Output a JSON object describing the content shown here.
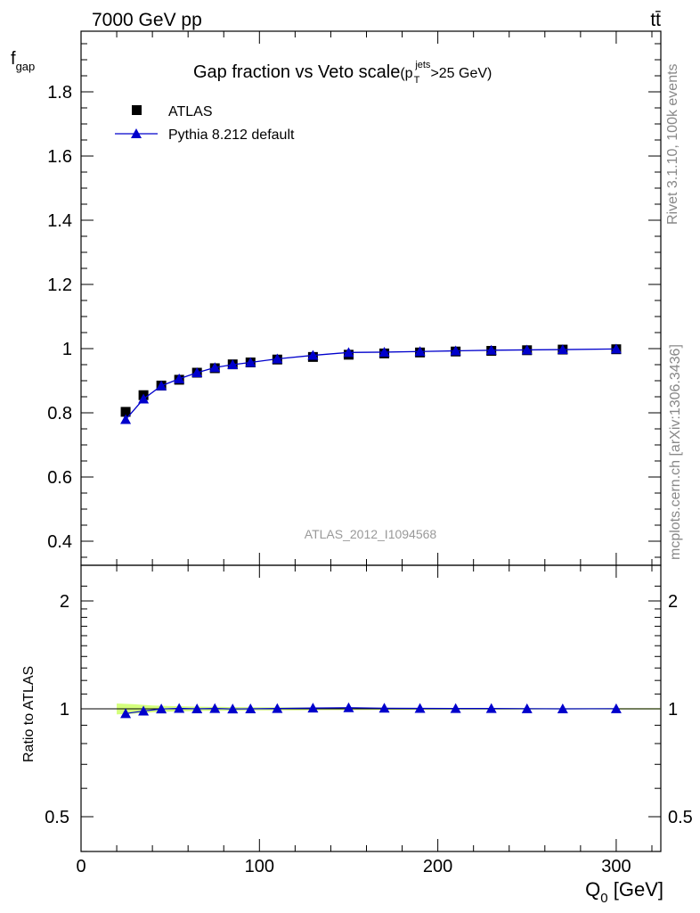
{
  "header": {
    "energy_label": "7000 GeV pp",
    "process_label": "tt̄"
  },
  "side_labels": {
    "rivet": "Rivet 3.1.10,  100k events",
    "source": "mcplots.cern.ch [arXiv:1306.3436]"
  },
  "watermark": "ATLAS_2012_I1094568",
  "chart_data": [
    {
      "type": "scatter",
      "title": "Gap fraction vs Veto scale",
      "title_cut": {
        "prefix": "(p",
        "sub": "T",
        "sup": "jets",
        "suffix": ">25 GeV)"
      },
      "ylabel": {
        "main": "f",
        "sub": "gap"
      },
      "xlim": [
        0,
        325
      ],
      "ylim": [
        0.35,
        2.0
      ],
      "y_ticks": [
        "0.4",
        "0.6",
        "0.8",
        "1",
        "1.2",
        "1.4",
        "1.6",
        "1.8"
      ],
      "legend_position": "top-left",
      "x": [
        25,
        35,
        45,
        55,
        65,
        75,
        85,
        95,
        110,
        130,
        150,
        170,
        190,
        210,
        230,
        250,
        270,
        300
      ],
      "series": [
        {
          "name": "ATLAS",
          "marker": "square",
          "color": "#000000",
          "values": [
            0.803,
            0.855,
            0.885,
            0.903,
            0.925,
            0.939,
            0.951,
            0.957,
            0.966,
            0.974,
            0.981,
            0.985,
            0.988,
            0.991,
            0.993,
            0.995,
            0.997,
            0.998
          ]
        },
        {
          "name": "Pythia 8.212 default",
          "marker": "triangle",
          "color": "#0000cc",
          "line": true,
          "values": [
            0.779,
            0.843,
            0.884,
            0.906,
            0.925,
            0.941,
            0.95,
            0.957,
            0.968,
            0.979,
            0.988,
            0.989,
            0.991,
            0.993,
            0.995,
            0.996,
            0.997,
            0.999
          ]
        }
      ]
    },
    {
      "type": "scatter",
      "ylabel": "Ratio to ATLAS",
      "xlabel": {
        "main": "Q",
        "sub": "0",
        "suffix": " [GeV]"
      },
      "xlim": [
        0,
        325
      ],
      "x_ticks": [
        "0",
        "100",
        "200",
        "300"
      ],
      "y_ticks": [
        "0.5",
        "1",
        "2"
      ],
      "band_color": "#ccff66",
      "x": [
        25,
        35,
        45,
        55,
        65,
        75,
        85,
        95,
        110,
        130,
        150,
        170,
        190,
        210,
        230,
        250,
        270,
        300
      ],
      "series": [
        {
          "name": "Pythia 8.212 default",
          "marker": "triangle",
          "color": "#0000cc",
          "values": [
            0.97,
            0.986,
            0.999,
            1.003,
            1.0,
            1.002,
            0.999,
            1.0,
            1.002,
            1.005,
            1.007,
            1.004,
            1.003,
            1.002,
            1.002,
            1.001,
            1.0,
            1.001
          ]
        }
      ]
    }
  ]
}
